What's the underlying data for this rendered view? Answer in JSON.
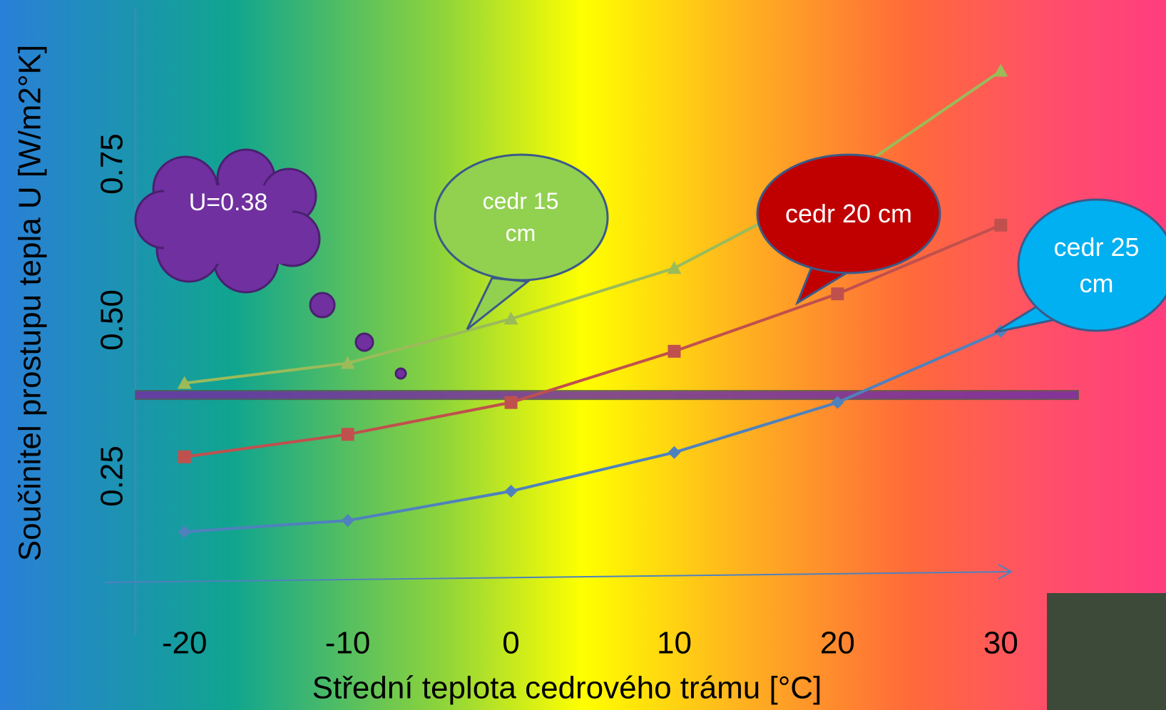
{
  "chart_data": {
    "type": "line",
    "x_label": "Střední teplota cedrového trámu [°C]",
    "y_label": "Součinitel prostupu tepla U [W/m2°K]",
    "x": [
      -20,
      -10,
      0,
      10,
      20,
      30
    ],
    "series": [
      {
        "name": "cedr 15 cm",
        "color": "#9bbb59",
        "marker": "triangle",
        "values": [
          0.399,
          0.431,
          0.502,
          0.583,
          0.72,
          0.899
        ]
      },
      {
        "name": "cedr 20 cm",
        "color": "#c0504d",
        "marker": "square",
        "values": [
          0.281,
          0.317,
          0.368,
          0.45,
          0.542,
          0.652
        ]
      },
      {
        "name": "cedr 25 cm",
        "color": "#4f81bd",
        "marker": "diamond",
        "values": [
          0.161,
          0.179,
          0.226,
          0.288,
          0.368,
          0.482
        ]
      }
    ],
    "reference_line": {
      "value": 0.38,
      "label": "U=0.38",
      "color": "#7030a0"
    },
    "xlim": [
      -23,
      33
    ],
    "ylim": [
      0,
      1
    ],
    "xticks": [
      -20,
      -10,
      0,
      10,
      20,
      30
    ],
    "yticks": [
      0.25,
      {
        "value": 0.5,
        "label": "0.50"
      },
      0.75
    ]
  }
}
